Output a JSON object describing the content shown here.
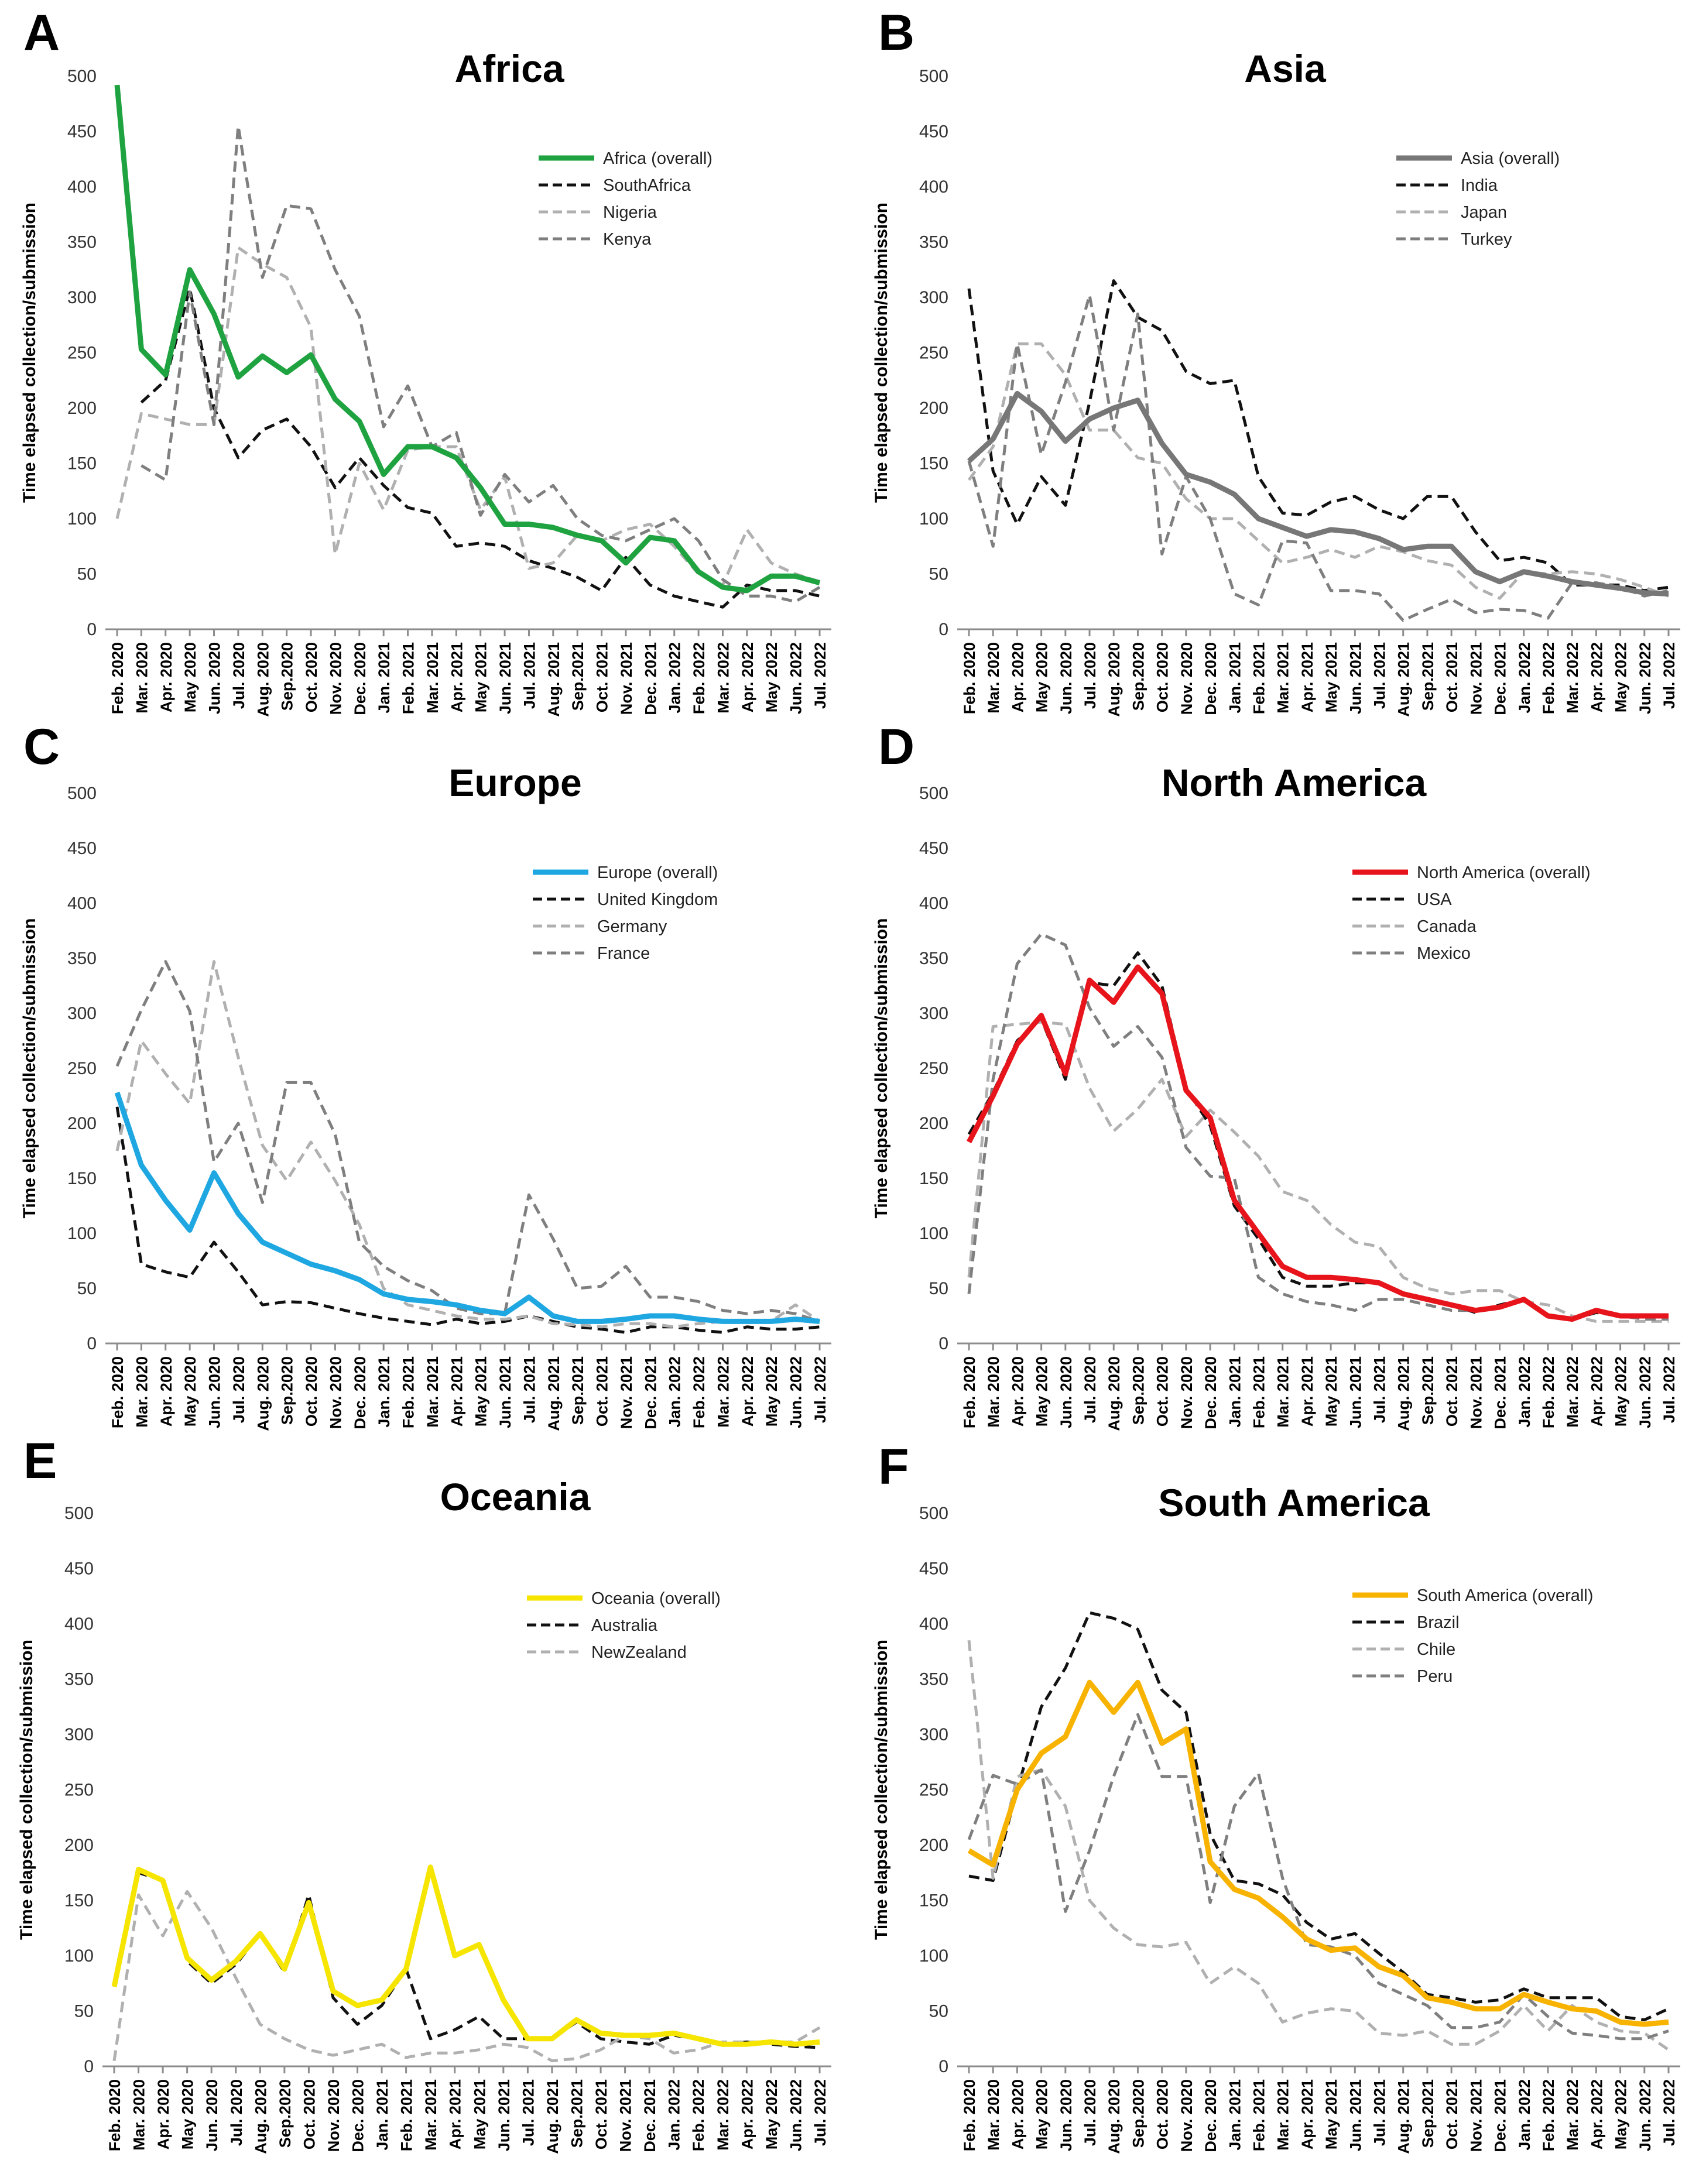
{
  "months": [
    "Feb. 2020",
    "Mar. 2020",
    "Apr. 2020",
    "May 2020",
    "Jun. 2020",
    "Jul. 2020",
    "Aug. 2020",
    "Sep.2020",
    "Oct. 2020",
    "Nov. 2020",
    "Dec. 2020",
    "Jan. 2021",
    "Feb. 2021",
    "Mar. 2021",
    "Apr. 2021",
    "May 2021",
    "Jun. 2021",
    "Jul. 2021",
    "Aug. 2021",
    "Sep.2021",
    "Oct. 2021",
    "Nov. 2021",
    "Dec. 2021",
    "Jan. 2022",
    "Feb. 2022",
    "Mar. 2022",
    "Apr. 2022",
    "May 2022",
    "Jun. 2022",
    "Jul. 2022"
  ],
  "ylabel": "Time elapsed collection/submission",
  "yticks": [
    "0",
    "50",
    "100",
    "150",
    "200",
    "250",
    "300",
    "350",
    "400",
    "450",
    "500"
  ],
  "chart_data": [
    {
      "panel": "A",
      "title": "Africa",
      "type": "line",
      "ylim": [
        0,
        500
      ],
      "legend_position": "top-right",
      "series": [
        {
          "name": "Africa (overall)",
          "style": "overall",
          "color": "#1fa340",
          "values": [
            492,
            253,
            230,
            325,
            285,
            228,
            247,
            232,
            248,
            208,
            188,
            140,
            165,
            165,
            155,
            128,
            95,
            95,
            92,
            85,
            80,
            60,
            83,
            80,
            52,
            38,
            35,
            48,
            48,
            42
          ]
        },
        {
          "name": "SouthAfrica",
          "style": "dash-black",
          "color": "#111111",
          "values": [
            null,
            205,
            225,
            308,
            200,
            155,
            180,
            190,
            165,
            128,
            155,
            130,
            110,
            105,
            75,
            78,
            75,
            62,
            55,
            47,
            35,
            65,
            40,
            30,
            25,
            20,
            40,
            35,
            35,
            30
          ]
        },
        {
          "name": "Nigeria",
          "style": "dash-light",
          "color": "#b0b0b0",
          "values": [
            100,
            195,
            190,
            185,
            185,
            345,
            330,
            318,
            273,
            68,
            150,
            108,
            162,
            165,
            165,
            108,
            138,
            55,
            60,
            85,
            80,
            90,
            95,
            75,
            50,
            40,
            90,
            60,
            50,
            43
          ]
        },
        {
          "name": "Kenya",
          "style": "dash-dark",
          "color": "#7f7f7f",
          "values": [
            null,
            148,
            135,
            305,
            185,
            455,
            318,
            383,
            380,
            325,
            283,
            183,
            220,
            165,
            178,
            103,
            140,
            115,
            130,
            100,
            85,
            80,
            90,
            100,
            80,
            45,
            30,
            30,
            25,
            38
          ]
        }
      ]
    },
    {
      "panel": "B",
      "title": "Asia",
      "type": "line",
      "ylim": [
        0,
        500
      ],
      "legend_position": "top-right",
      "series": [
        {
          "name": "Asia (overall)",
          "style": "overall",
          "color": "#777777",
          "values": [
            152,
            172,
            213,
            197,
            170,
            190,
            200,
            207,
            168,
            140,
            133,
            122,
            100,
            92,
            84,
            90,
            88,
            82,
            72,
            75,
            75,
            52,
            43,
            52,
            48,
            43,
            40,
            37,
            33,
            32
          ]
        },
        {
          "name": "India",
          "style": "dash-black",
          "color": "#111111",
          "values": [
            308,
            143,
            95,
            138,
            112,
            205,
            315,
            282,
            270,
            233,
            222,
            225,
            138,
            105,
            103,
            115,
            120,
            108,
            100,
            120,
            120,
            88,
            62,
            65,
            60,
            40,
            40,
            40,
            35,
            38
          ]
        },
        {
          "name": "Japan",
          "style": "dash-light",
          "color": "#b0b0b0",
          "values": [
            135,
            165,
            258,
            258,
            230,
            180,
            180,
            155,
            150,
            118,
            100,
            100,
            80,
            60,
            65,
            72,
            65,
            75,
            70,
            62,
            58,
            38,
            28,
            52,
            50,
            52,
            50,
            45,
            38,
            30
          ]
        },
        {
          "name": "Turkey",
          "style": "dash-dark",
          "color": "#7f7f7f",
          "values": [
            152,
            75,
            258,
            158,
            223,
            302,
            180,
            285,
            68,
            138,
            100,
            32,
            22,
            80,
            78,
            35,
            35,
            32,
            8,
            18,
            27,
            15,
            18,
            17,
            10,
            42,
            42,
            38,
            30,
            35
          ]
        }
      ]
    },
    {
      "panel": "C",
      "title": "Europe",
      "type": "line",
      "ylim": [
        0,
        500
      ],
      "legend_position": "top-right",
      "series": [
        {
          "name": "Europe (overall)",
          "style": "overall",
          "color": "#1fa7e1",
          "values": [
            228,
            162,
            130,
            103,
            155,
            118,
            92,
            82,
            72,
            66,
            58,
            45,
            40,
            38,
            35,
            30,
            27,
            42,
            25,
            20,
            20,
            22,
            25,
            25,
            22,
            20,
            20,
            20,
            22,
            20
          ]
        },
        {
          "name": "United Kingdom",
          "style": "dash-black",
          "color": "#111111",
          "values": [
            215,
            72,
            65,
            60,
            92,
            65,
            35,
            38,
            37,
            32,
            27,
            23,
            20,
            17,
            22,
            18,
            20,
            25,
            20,
            15,
            13,
            10,
            15,
            15,
            12,
            10,
            15,
            13,
            13,
            15
          ]
        },
        {
          "name": "Germany",
          "style": "dash-light",
          "color": "#b0b0b0",
          "values": [
            175,
            275,
            245,
            218,
            347,
            260,
            180,
            148,
            183,
            148,
            108,
            50,
            35,
            30,
            25,
            22,
            22,
            25,
            18,
            17,
            15,
            18,
            18,
            15,
            18,
            20,
            20,
            20,
            35,
            20
          ]
        },
        {
          "name": "France",
          "style": "dash-dark",
          "color": "#7f7f7f",
          "values": [
            252,
            303,
            347,
            302,
            165,
            200,
            128,
            237,
            237,
            190,
            92,
            70,
            57,
            48,
            32,
            27,
            27,
            135,
            95,
            50,
            52,
            70,
            42,
            42,
            38,
            30,
            27,
            30,
            27,
            20
          ]
        }
      ]
    },
    {
      "panel": "D",
      "title": "North America",
      "type": "line",
      "ylim": [
        0,
        500
      ],
      "legend_position": "top-right",
      "series": [
        {
          "name": "North America (overall)",
          "style": "overall",
          "color": "#e8141b",
          "values": [
            183,
            225,
            272,
            298,
            245,
            330,
            310,
            342,
            318,
            230,
            205,
            130,
            100,
            70,
            60,
            60,
            58,
            55,
            45,
            40,
            35,
            30,
            33,
            40,
            25,
            22,
            30,
            25,
            25,
            25
          ]
        },
        {
          "name": "USA",
          "style": "dash-black",
          "color": "#111111",
          "values": [
            190,
            228,
            275,
            295,
            240,
            328,
            325,
            355,
            325,
            232,
            198,
            125,
            95,
            60,
            52,
            52,
            55,
            55,
            45,
            40,
            35,
            28,
            35,
            40,
            25,
            22,
            28,
            25,
            25,
            25
          ]
        },
        {
          "name": "Canada",
          "style": "dash-light",
          "color": "#b0b0b0",
          "values": [
            60,
            288,
            290,
            292,
            290,
            232,
            193,
            213,
            240,
            188,
            212,
            192,
            170,
            138,
            130,
            108,
            92,
            88,
            60,
            50,
            45,
            48,
            48,
            38,
            35,
            25,
            20,
            20,
            20,
            20
          ]
        },
        {
          "name": "Mexico",
          "style": "dash-dark",
          "color": "#7f7f7f",
          "values": [
            45,
            240,
            345,
            372,
            362,
            305,
            270,
            288,
            260,
            178,
            152,
            150,
            60,
            45,
            38,
            35,
            30,
            40,
            40,
            35,
            30,
            30,
            32,
            40,
            25,
            22,
            30,
            25,
            22,
            22
          ]
        }
      ]
    },
    {
      "panel": "E",
      "title": "Oceania",
      "type": "line",
      "ylim": [
        0,
        500
      ],
      "legend_position": "top-right",
      "series": [
        {
          "name": "Oceania (overall)",
          "style": "overall",
          "color": "#f5e500",
          "values": [
            72,
            178,
            168,
            98,
            78,
            95,
            120,
            88,
            148,
            68,
            55,
            60,
            88,
            180,
            100,
            110,
            60,
            25,
            25,
            42,
            30,
            28,
            28,
            30,
            25,
            20,
            20,
            22,
            20,
            22
          ]
        },
        {
          "name": "Australia",
          "style": "dash-black",
          "color": "#111111",
          "values": [
            72,
            175,
            168,
            95,
            75,
            92,
            120,
            85,
            155,
            62,
            38,
            55,
            88,
            25,
            33,
            45,
            25,
            25,
            25,
            40,
            25,
            22,
            20,
            28,
            25,
            20,
            22,
            20,
            18,
            17
          ]
        },
        {
          "name": "NewZealand",
          "style": "dash-light",
          "color": "#b0b0b0",
          "values": [
            5,
            155,
            118,
            158,
            125,
            80,
            38,
            25,
            15,
            10,
            15,
            20,
            8,
            12,
            12,
            15,
            20,
            17,
            5,
            7,
            15,
            28,
            25,
            12,
            15,
            22,
            22,
            22,
            22,
            35
          ]
        }
      ]
    },
    {
      "panel": "F",
      "title": "South America",
      "type": "line",
      "ylim": [
        0,
        500
      ],
      "legend_position": "top-right",
      "series": [
        {
          "name": "South America (overall)",
          "style": "overall",
          "color": "#f7b300",
          "values": [
            195,
            182,
            250,
            283,
            298,
            347,
            320,
            347,
            292,
            305,
            185,
            160,
            152,
            135,
            115,
            105,
            107,
            90,
            82,
            62,
            58,
            52,
            52,
            65,
            58,
            52,
            50,
            40,
            38,
            40
          ]
        },
        {
          "name": "Brazil",
          "style": "dash-black",
          "color": "#111111",
          "values": [
            172,
            168,
            250,
            325,
            360,
            410,
            405,
            395,
            340,
            320,
            210,
            168,
            165,
            155,
            130,
            115,
            120,
            102,
            85,
            65,
            62,
            58,
            60,
            70,
            62,
            62,
            62,
            45,
            42,
            52
          ]
        },
        {
          "name": "Chile",
          "style": "dash-light",
          "color": "#b0b0b0",
          "values": [
            385,
            170,
            262,
            268,
            235,
            150,
            125,
            110,
            108,
            112,
            75,
            90,
            75,
            40,
            48,
            52,
            50,
            30,
            28,
            32,
            20,
            20,
            32,
            55,
            32,
            55,
            40,
            32,
            30,
            15
          ]
        },
        {
          "name": "Peru",
          "style": "dash-dark",
          "color": "#7f7f7f",
          "values": [
            205,
            263,
            255,
            268,
            140,
            195,
            262,
            318,
            262,
            262,
            148,
            235,
            265,
            170,
            110,
            108,
            100,
            75,
            65,
            55,
            35,
            35,
            40,
            65,
            45,
            30,
            28,
            25,
            25,
            32
          ]
        }
      ]
    }
  ]
}
